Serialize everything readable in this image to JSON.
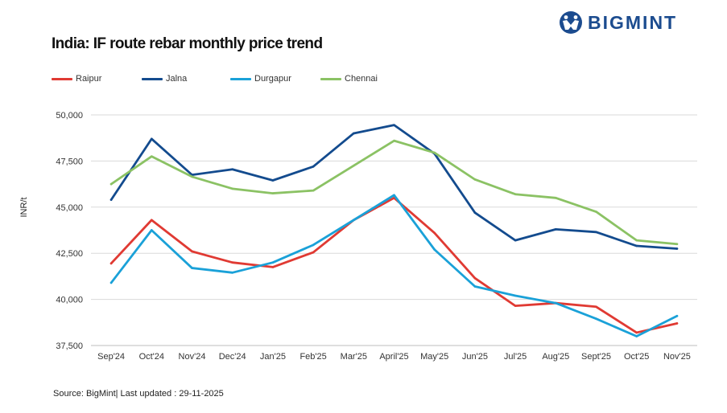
{
  "brand": {
    "name": "BIGMINT",
    "color": "#1c4c8f"
  },
  "chart_data": {
    "type": "line",
    "title": "India: IF route rebar monthly price trend",
    "xlabel": "",
    "ylabel": "INR/t",
    "ylim": [
      37500,
      50000
    ],
    "yticks": [
      37500,
      40000,
      42500,
      45000,
      47500,
      50000
    ],
    "ytick_labels": [
      "37,500",
      "40,000",
      "42,500",
      "45,000",
      "47,500",
      "50,000"
    ],
    "grid": true,
    "legend_position": "top-left",
    "categories": [
      "Sep'24",
      "Oct'24",
      "Nov'24",
      "Dec'24",
      "Jan'25",
      "Feb'25",
      "Mar'25",
      "April'25",
      "May'25",
      "Jun'25",
      "Jul'25",
      "Aug'25",
      "Sept'25",
      "Oct'25",
      "Nov'25"
    ],
    "series": [
      {
        "name": "Raipur",
        "color": "#e03a33",
        "values": [
          41950,
          44300,
          42600,
          42000,
          41750,
          42550,
          44300,
          45500,
          43600,
          41150,
          39650,
          39800,
          39600,
          38200,
          38700
        ]
      },
      {
        "name": "Jalna",
        "color": "#134b8e",
        "values": [
          45400,
          48700,
          46750,
          47050,
          46450,
          47200,
          49000,
          49450,
          47900,
          44700,
          43200,
          43800,
          43650,
          42900,
          42750
        ]
      },
      {
        "name": "Durgapur",
        "color": "#1aa1d8",
        "values": [
          40900,
          43750,
          41700,
          41450,
          42000,
          42950,
          44300,
          45650,
          42700,
          40700,
          40200,
          39800,
          38950,
          38000,
          39100
        ]
      },
      {
        "name": "Chennai",
        "color": "#8bc264",
        "values": [
          46250,
          47750,
          46650,
          46000,
          45750,
          45900,
          47250,
          48600,
          47950,
          46500,
          45700,
          45500,
          44750,
          43200,
          43000
        ]
      }
    ]
  },
  "footer": {
    "source": "Source: BigMint| Last updated : 29-11-2025"
  }
}
